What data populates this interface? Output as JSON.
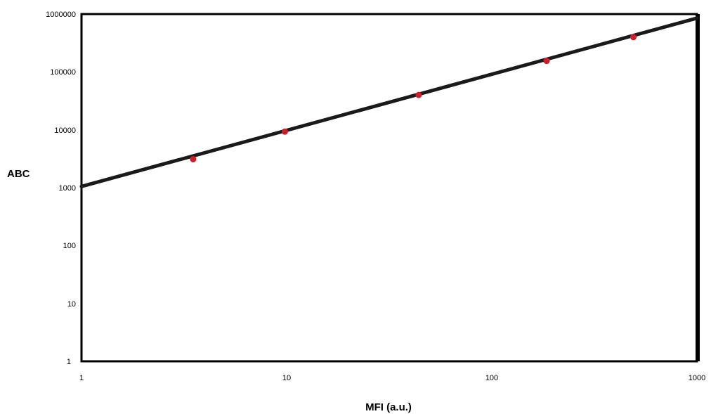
{
  "chart_data": {
    "type": "scatter",
    "title": "",
    "xlabel": "MFI (a.u.)",
    "ylabel": "ABC",
    "x_scale": "log",
    "y_scale": "log",
    "xlim": [
      1,
      1000
    ],
    "ylim": [
      1,
      1000000
    ],
    "x_ticks": [
      "1",
      "10",
      "100",
      "1000"
    ],
    "y_ticks": [
      "1",
      "10",
      "100",
      "1000",
      "10000",
      "100000",
      "1000000"
    ],
    "grid": false,
    "legend": "none",
    "series": [
      {
        "points": [
          {
            "x": 3.5,
            "y": 3100
          },
          {
            "x": 9.8,
            "y": 9300
          },
          {
            "x": 44,
            "y": 40000
          },
          {
            "x": 185,
            "y": 155000
          },
          {
            "x": 490,
            "y": 400000
          }
        ],
        "color": "#cc1f2a"
      }
    ],
    "fit_line": {
      "from": [
        1,
        1050
      ],
      "to": [
        1000,
        850000
      ],
      "color": "#1a1a1a"
    }
  }
}
